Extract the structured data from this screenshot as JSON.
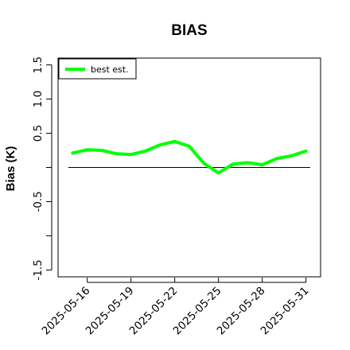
{
  "chart_data": {
    "type": "line",
    "title": "BIAS",
    "xlabel": "",
    "ylabel": "Bias (K)",
    "ylim": [
      -1.6,
      1.6
    ],
    "yticks": [
      -1.5,
      -1.0,
      -0.5,
      0.0,
      0.5,
      1.0,
      1.5
    ],
    "ytick_labels": [
      "-1.5",
      "",
      "-0.5",
      "",
      "0.5",
      "1.0",
      "1.5"
    ],
    "xlim": [
      "2025-05-14",
      "2025-06-01"
    ],
    "xticks": [
      "2025-05-16",
      "2025-05-19",
      "2025-05-22",
      "2025-05-25",
      "2025-05-28",
      "2025-05-31"
    ],
    "reference_line": 0.0,
    "legend": {
      "position": "top-left",
      "entries": [
        "best est."
      ]
    },
    "grid": false,
    "series": [
      {
        "name": "best est.",
        "color": "#00ff00",
        "x": [
          "2025-05-15",
          "2025-05-16",
          "2025-05-17",
          "2025-05-18",
          "2025-05-19",
          "2025-05-20",
          "2025-05-21",
          "2025-05-22",
          "2025-05-23",
          "2025-05-24",
          "2025-05-25",
          "2025-05-26",
          "2025-05-27",
          "2025-05-28",
          "2025-05-29",
          "2025-05-30",
          "2025-05-31"
        ],
        "values": [
          0.21,
          0.26,
          0.25,
          0.2,
          0.19,
          0.24,
          0.33,
          0.38,
          0.31,
          0.06,
          -0.08,
          0.05,
          0.07,
          0.04,
          0.13,
          0.17,
          0.24
        ]
      }
    ]
  }
}
